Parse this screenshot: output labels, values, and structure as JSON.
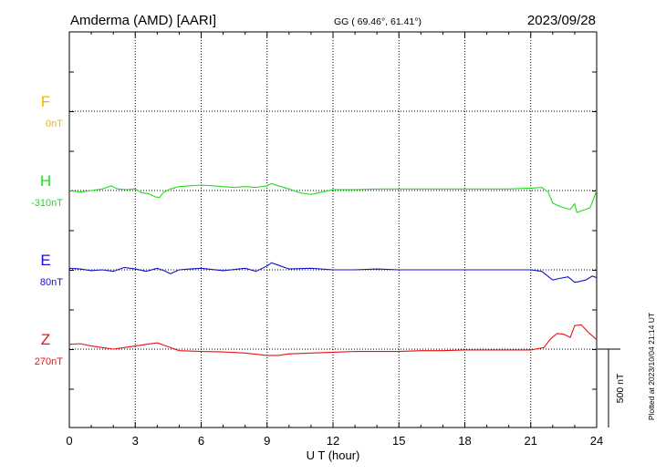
{
  "header": {
    "station": "Amderma (AMD)  [AARI]",
    "coords": "GG ( 69.46°,  61.41°)",
    "date": "2023/09/28"
  },
  "footer": {
    "plotted": "Plotted at 2023/10/04 21:14 UT"
  },
  "chart_data": {
    "type": "line",
    "xlabel": "U T (hour)",
    "xlim": [
      0,
      24
    ],
    "xticks": [
      0,
      3,
      6,
      9,
      12,
      15,
      18,
      21,
      24
    ],
    "scale_bar_label": "500 nT",
    "grid": true,
    "colors": {
      "F": "#f0b400",
      "H": "#22dd22",
      "E": "#1010cc",
      "Z": "#ee1111"
    },
    "series": [
      {
        "name": "F",
        "baseline_label": "0nT",
        "values": []
      },
      {
        "name": "H",
        "baseline_label": "-310nT",
        "x": [
          0,
          0.5,
          1,
          1.5,
          1.9,
          2.2,
          2.6,
          3.0,
          3.3,
          3.6,
          3.9,
          4.1,
          4.3,
          4.6,
          5.0,
          5.5,
          6.0,
          6.5,
          7.0,
          7.5,
          8.0,
          8.5,
          9.0,
          9.2,
          9.5,
          10.0,
          10.5,
          11.0,
          11.5,
          12.0,
          13,
          14,
          15,
          16,
          17,
          18,
          19,
          20,
          21,
          21.5,
          21.8,
          22.0,
          22.3,
          22.5,
          22.8,
          23.0,
          23.1,
          23.3,
          23.5,
          23.7,
          24
        ],
        "values": [
          -310,
          -320,
          -310,
          -300,
          -280,
          -300,
          -305,
          -300,
          -325,
          -330,
          -350,
          -355,
          -320,
          -300,
          -285,
          -280,
          -275,
          -280,
          -285,
          -290,
          -285,
          -290,
          -280,
          -265,
          -280,
          -300,
          -325,
          -335,
          -320,
          -305,
          -305,
          -300,
          -300,
          -300,
          -300,
          -300,
          -300,
          -300,
          -295,
          -290,
          -320,
          -390,
          -410,
          -420,
          -430,
          -395,
          -450,
          -440,
          -430,
          -420,
          -310
        ]
      },
      {
        "name": "E",
        "baseline_label": "80nT",
        "x": [
          0,
          0.5,
          1,
          1.5,
          2.0,
          2.5,
          3.0,
          3.5,
          4.0,
          4.3,
          4.6,
          5.0,
          5.5,
          6,
          7,
          8,
          8.5,
          9,
          9.2,
          9.5,
          10,
          11,
          12,
          13,
          14,
          15,
          16,
          17,
          18,
          19,
          20,
          21,
          21.5,
          22,
          22.3,
          22.7,
          23.0,
          23.2,
          23.5,
          23.8,
          24
        ],
        "values": [
          90,
          85,
          75,
          80,
          70,
          95,
          85,
          70,
          90,
          75,
          55,
          80,
          85,
          90,
          75,
          90,
          70,
          105,
          125,
          110,
          85,
          90,
          80,
          80,
          85,
          80,
          80,
          80,
          80,
          80,
          80,
          80,
          70,
          15,
          25,
          35,
          0,
          5,
          15,
          40,
          30
        ]
      },
      {
        "name": "Z",
        "baseline_label": "270nT",
        "x": [
          0,
          0.5,
          1,
          1.5,
          2,
          2.5,
          3,
          3.5,
          4,
          4.5,
          5,
          6,
          7,
          8,
          9,
          9.5,
          10,
          11,
          12,
          13,
          14,
          15,
          16,
          17,
          18,
          19,
          20,
          21,
          21.6,
          21.9,
          22.2,
          22.5,
          22.8,
          23.0,
          23.3,
          23.6,
          24
        ],
        "values": [
          300,
          305,
          290,
          280,
          270,
          280,
          290,
          300,
          310,
          285,
          260,
          255,
          252,
          245,
          230,
          230,
          240,
          245,
          250,
          255,
          255,
          255,
          260,
          260,
          265,
          265,
          265,
          265,
          280,
          335,
          370,
          365,
          345,
          420,
          425,
          380,
          330
        ]
      }
    ]
  }
}
